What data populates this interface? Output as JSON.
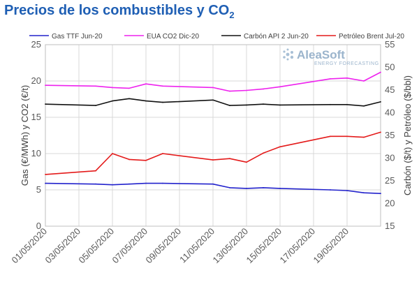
{
  "title": {
    "main": "Precios de los combustibles y CO",
    "sub": "2"
  },
  "logo": {
    "brand": "AleaSoft",
    "tagline": "ENERGY FORECASTING"
  },
  "chart_data": {
    "type": "line",
    "title": "Precios de los combustibles y CO2",
    "ylabel": "Gas (€/MWh) y CO2 (€/t)",
    "y2label": "Carbón ($/t) y Petróleo ($/bbl)",
    "xlabel": "",
    "ylim": [
      0,
      25
    ],
    "y2lim": [
      15,
      55
    ],
    "yticks": [
      0,
      5,
      10,
      15,
      20,
      25
    ],
    "y2ticks": [
      15,
      20,
      25,
      30,
      35,
      40,
      45,
      50,
      55
    ],
    "grid": true,
    "legend_position": "top",
    "x_dates": [
      "01/05/2020",
      "02/05/2020",
      "03/05/2020",
      "04/05/2020",
      "05/05/2020",
      "06/05/2020",
      "07/05/2020",
      "08/05/2020",
      "09/05/2020",
      "10/05/2020",
      "11/05/2020",
      "12/05/2020",
      "13/05/2020",
      "14/05/2020",
      "15/05/2020",
      "16/05/2020",
      "17/05/2020",
      "18/05/2020",
      "19/05/2020",
      "20/05/2020",
      "21/05/2020"
    ],
    "xtick_labels": [
      "01/05/2020",
      "03/05/2020",
      "05/05/2020",
      "07/05/2020",
      "09/05/2020",
      "11/05/2020",
      "13/05/2020",
      "15/05/2020",
      "17/05/2020",
      "19/05/2020"
    ],
    "series": [
      {
        "name": "Gas TTF Jun-20",
        "axis": "left",
        "color": "#2222cc",
        "dates": [
          "01/05/2020",
          "04/05/2020",
          "05/05/2020",
          "06/05/2020",
          "07/05/2020",
          "08/05/2020",
          "11/05/2020",
          "12/05/2020",
          "13/05/2020",
          "14/05/2020",
          "15/05/2020",
          "18/05/2020",
          "19/05/2020",
          "20/05/2020",
          "21/05/2020"
        ],
        "values": [
          5.9,
          5.8,
          5.7,
          5.8,
          5.9,
          5.9,
          5.8,
          5.3,
          5.2,
          5.3,
          5.2,
          5.0,
          4.9,
          4.6,
          4.5
        ]
      },
      {
        "name": "EUA CO2 Dic-20",
        "axis": "left",
        "color": "#ee22ee",
        "dates": [
          "01/05/2020",
          "04/05/2020",
          "05/05/2020",
          "06/05/2020",
          "07/05/2020",
          "08/05/2020",
          "11/05/2020",
          "12/05/2020",
          "13/05/2020",
          "14/05/2020",
          "15/05/2020",
          "18/05/2020",
          "19/05/2020",
          "20/05/2020",
          "21/05/2020"
        ],
        "values": [
          19.4,
          19.3,
          19.1,
          19.0,
          19.6,
          19.3,
          19.1,
          18.6,
          18.7,
          18.9,
          19.2,
          20.3,
          20.4,
          20.0,
          21.2
        ]
      },
      {
        "name": "Carbón API 2 Jun-20",
        "axis": "right",
        "color": "#111111",
        "dates": [
          "01/05/2020",
          "04/05/2020",
          "05/05/2020",
          "06/05/2020",
          "07/05/2020",
          "08/05/2020",
          "11/05/2020",
          "12/05/2020",
          "13/05/2020",
          "14/05/2020",
          "15/05/2020",
          "18/05/2020",
          "19/05/2020",
          "20/05/2020",
          "21/05/2020"
        ],
        "values": [
          41.9,
          41.6,
          42.6,
          43.1,
          42.6,
          42.3,
          42.8,
          41.6,
          41.7,
          41.9,
          41.7,
          41.8,
          41.8,
          41.5,
          42.4
        ]
      },
      {
        "name": "Petróleo Brent Jul-20",
        "axis": "right",
        "color": "#e41a1a",
        "dates": [
          "01/05/2020",
          "04/05/2020",
          "05/05/2020",
          "06/05/2020",
          "07/05/2020",
          "08/05/2020",
          "11/05/2020",
          "12/05/2020",
          "13/05/2020",
          "14/05/2020",
          "15/05/2020",
          "18/05/2020",
          "19/05/2020",
          "20/05/2020",
          "21/05/2020"
        ],
        "values": [
          26.4,
          27.2,
          31.0,
          29.7,
          29.5,
          31.0,
          29.6,
          29.9,
          29.1,
          31.1,
          32.5,
          34.8,
          34.8,
          34.6,
          35.7
        ]
      }
    ]
  }
}
